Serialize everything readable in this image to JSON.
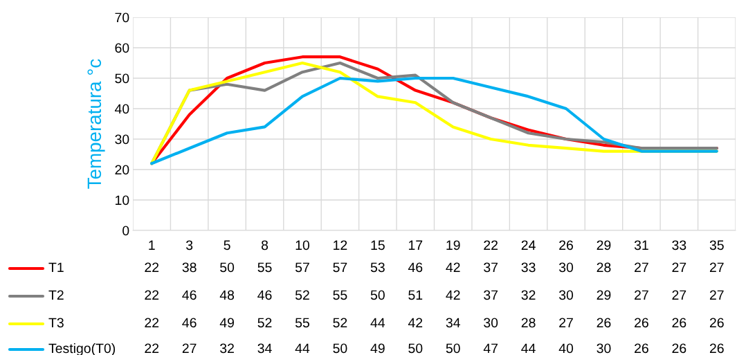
{
  "chart_data": {
    "type": "line",
    "ylabel": "Temperatura °c",
    "categories": [
      "1",
      "3",
      "5",
      "8",
      "10",
      "12",
      "15",
      "17",
      "19",
      "22",
      "24",
      "26",
      "29",
      "31",
      "33",
      "35"
    ],
    "series": [
      {
        "name": "T1",
        "color": "#ff0000",
        "values": [
          22,
          38,
          50,
          55,
          57,
          57,
          53,
          46,
          42,
          37,
          33,
          30,
          28,
          27,
          27,
          27
        ]
      },
      {
        "name": "T2",
        "color": "#808080",
        "values": [
          22,
          46,
          48,
          46,
          52,
          55,
          50,
          51,
          42,
          37,
          32,
          30,
          29,
          27,
          27,
          27
        ]
      },
      {
        "name": "T3",
        "color": "#ffff00",
        "values": [
          22,
          46,
          49,
          52,
          55,
          52,
          44,
          42,
          34,
          30,
          28,
          27,
          26,
          26,
          26,
          26
        ]
      },
      {
        "name": "Testigo(T0)",
        "color": "#00b0f0",
        "values": [
          22,
          27,
          32,
          34,
          44,
          50,
          49,
          50,
          50,
          47,
          44,
          40,
          30,
          26,
          26,
          26
        ]
      }
    ],
    "ylim": [
      0,
      70
    ],
    "yticks": [
      0,
      10,
      20,
      30,
      40,
      50,
      60,
      70
    ],
    "grid": true,
    "legend": "bottom",
    "data_labels": true,
    "marker": "none",
    "line_style": "solid"
  }
}
